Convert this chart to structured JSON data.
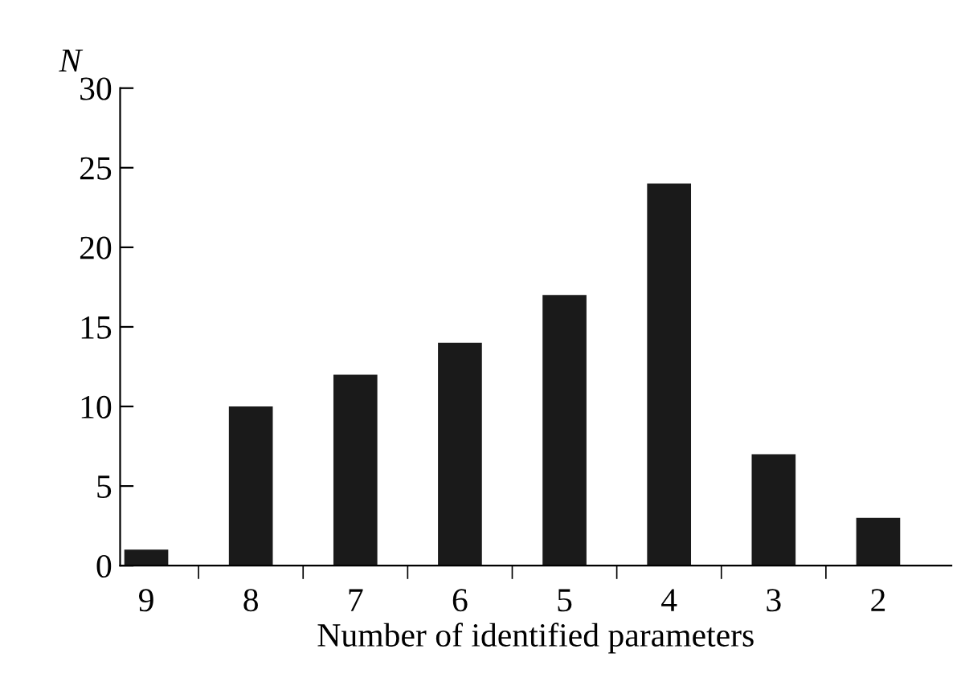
{
  "chart_data": {
    "type": "bar",
    "xlabel": "Number of identified parameters",
    "ylabel": "N",
    "categories": [
      "9",
      "8",
      "7",
      "6",
      "5",
      "4",
      "3",
      "2"
    ],
    "values": [
      1,
      10,
      12,
      14,
      17,
      24,
      7,
      3
    ],
    "color": "#1a1a1a",
    "ylim": [
      0,
      30
    ],
    "yticks": [
      0,
      5,
      10,
      15,
      20,
      25,
      30
    ],
    "grid": false,
    "legend": false
  }
}
